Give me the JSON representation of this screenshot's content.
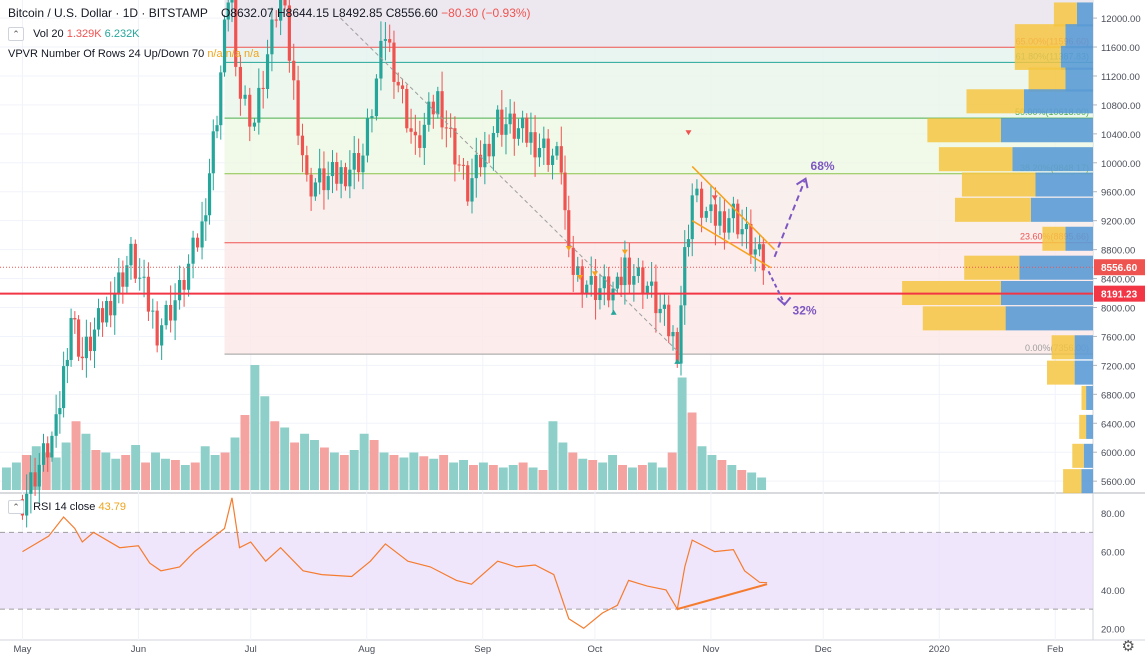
{
  "header": {
    "symbol": "Bitcoin / U.S. Dollar · 1D · BITSTAMP",
    "ohlc": "O8632.07  H8644.15  L8492.85  C8556.60",
    "change": "−80.30 (−0.93%)"
  },
  "indicators": {
    "vol_label": "Vol 20",
    "vol_v1": "1.329K",
    "vol_v2": "6.232K",
    "vpvr_label": "VPVR Number Of Rows 24 Up/Down 70",
    "vpvr_vals": "n/a  n/a  n/a",
    "rsi_label": "RSI 14 close",
    "rsi_value": "43.79"
  },
  "colors": {
    "up": "#26a69a",
    "down": "#ef5350",
    "vol_up": "#8ed0c9",
    "vol_down": "#f5a3a1",
    "fib": "#ef9a9a",
    "support": "#f23645",
    "wedge": "#f7a21b",
    "arrows": "#7e57c2",
    "rsi_line": "#f57c2f",
    "rsi_band": "#e9dcfb"
  },
  "chart_data": [
    {
      "type": "candlestick",
      "title": "Bitcoin / U.S. Dollar · 1D · BITSTAMP",
      "x_ticks": [
        "May",
        "Jun",
        "Jul",
        "Aug",
        "Sep",
        "Oct",
        "Nov",
        "Dec",
        "2020",
        "Feb"
      ],
      "y_ticks": [
        5600,
        6000,
        6400,
        6800,
        7200,
        7600,
        8000,
        8400,
        8800,
        9200,
        9600,
        10000,
        10400,
        10800,
        11200,
        11600,
        12000
      ],
      "y_tick_labels": [
        "5600.00",
        "6000.00",
        "6400.00",
        "6800.00",
        "7200.00",
        "7600.00",
        "8000.00",
        "8400.00",
        "8800.00",
        "9200.00",
        "9600.00",
        "10000.00",
        "10400.00",
        "10800.00",
        "11200.00",
        "11600.00",
        "12000.00"
      ],
      "ylim": [
        5450,
        12250
      ],
      "last_price": 8556.6,
      "last_price_label": "8556.60",
      "support": 8191.23,
      "support_label": "8191.23",
      "fib_levels": [
        {
          "price": 11596.6,
          "label": "65.00%(11596.60)",
          "color": "#ef5350"
        },
        {
          "price": 11387.83,
          "label": "61.80%(11387.83)",
          "color": "#26a69a"
        },
        {
          "price": 10618.0,
          "label": "50.00%(10618.00)",
          "color": "#4caf50"
        },
        {
          "price": 9848.17,
          "label": "38.20%(9848.17)",
          "color": "#8bc34a"
        },
        {
          "price": 8895.66,
          "label": "23.60%(8895.66)",
          "color": "#ef5350"
        },
        {
          "price": 7356.0,
          "label": "0.00%(7356.00)",
          "color": "#9e9e9e"
        }
      ],
      "annotations": [
        {
          "text": "68%",
          "color": "#7e57c2"
        },
        {
          "text": "32%",
          "color": "#7e57c2"
        }
      ],
      "price_path": [
        [
          "2019-05-01",
          5350
        ],
        [
          "2019-05-10",
          6300
        ],
        [
          "2019-05-14",
          7900
        ],
        [
          "2019-05-17",
          7300
        ],
        [
          "2019-05-30",
          8700
        ],
        [
          "2019-06-06",
          7700
        ],
        [
          "2019-06-12",
          8200
        ],
        [
          "2019-06-18",
          9100
        ],
        [
          "2019-06-22",
          10700
        ],
        [
          "2019-06-26",
          12900
        ],
        [
          "2019-06-27",
          11100
        ],
        [
          "2019-07-02",
          10600
        ],
        [
          "2019-07-09",
          12400
        ],
        [
          "2019-07-16",
          9700
        ],
        [
          "2019-07-24",
          9800
        ],
        [
          "2019-07-31",
          10100
        ],
        [
          "2019-08-06",
          11800
        ],
        [
          "2019-08-14",
          10200
        ],
        [
          "2019-08-20",
          10900
        ],
        [
          "2019-08-28",
          9600
        ],
        [
          "2019-09-05",
          10600
        ],
        [
          "2019-09-15",
          10300
        ],
        [
          "2019-09-22",
          10000
        ],
        [
          "2019-09-24",
          8600
        ],
        [
          "2019-09-30",
          8300
        ],
        [
          "2019-10-07",
          8200
        ],
        [
          "2019-10-09",
          8600
        ],
        [
          "2019-10-15",
          8300
        ],
        [
          "2019-10-23",
          7450
        ],
        [
          "2019-10-25",
          8700
        ],
        [
          "2019-10-27",
          9550
        ],
        [
          "2019-11-01",
          9200
        ],
        [
          "2019-11-07",
          9300
        ],
        [
          "2019-11-14",
          8650
        ],
        [
          "2019-11-16",
          8556
        ]
      ]
    },
    {
      "type": "bar",
      "title": "Vol 20",
      "note": "daily volume histogram beneath price",
      "values_relative": [
        0.18,
        0.22,
        0.28,
        0.35,
        0.3,
        0.26,
        0.38,
        0.55,
        0.45,
        0.32,
        0.3,
        0.25,
        0.28,
        0.36,
        0.22,
        0.3,
        0.25,
        0.24,
        0.2,
        0.22,
        0.35,
        0.28,
        0.3,
        0.42,
        0.6,
        1.0,
        0.75,
        0.55,
        0.5,
        0.38,
        0.45,
        0.4,
        0.34,
        0.3,
        0.28,
        0.32,
        0.45,
        0.4,
        0.3,
        0.28,
        0.26,
        0.3,
        0.27,
        0.25,
        0.28,
        0.22,
        0.24,
        0.2,
        0.22,
        0.2,
        0.18,
        0.2,
        0.22,
        0.18,
        0.16,
        0.55,
        0.38,
        0.3,
        0.25,
        0.24,
        0.22,
        0.28,
        0.2,
        0.18,
        0.2,
        0.22,
        0.18,
        0.3,
        0.9,
        0.62,
        0.35,
        0.28,
        0.24,
        0.2,
        0.16,
        0.14,
        0.1
      ]
    },
    {
      "type": "bar",
      "title": "VPVR Number Of Rows 24 Up/Down 70",
      "orientation": "horizontal",
      "rows": [
        {
          "price": 12050,
          "up": 0.1,
          "down": 0.07
        },
        {
          "price": 11750,
          "up": 0.22,
          "down": 0.12
        },
        {
          "price": 11450,
          "up": 0.2,
          "down": 0.14
        },
        {
          "price": 11150,
          "up": 0.16,
          "down": 0.12
        },
        {
          "price": 10850,
          "up": 0.25,
          "down": 0.3
        },
        {
          "price": 10450,
          "up": 0.32,
          "down": 0.4
        },
        {
          "price": 10050,
          "up": 0.32,
          "down": 0.35
        },
        {
          "price": 9700,
          "up": 0.32,
          "down": 0.25
        },
        {
          "price": 9350,
          "up": 0.33,
          "down": 0.27
        },
        {
          "price": 8950,
          "up": 0.1,
          "down": 0.12
        },
        {
          "price": 8550,
          "up": 0.24,
          "down": 0.32
        },
        {
          "price": 8200,
          "up": 0.43,
          "down": 0.4
        },
        {
          "price": 7850,
          "up": 0.36,
          "down": 0.38
        },
        {
          "price": 7450,
          "up": 0.1,
          "down": 0.08
        },
        {
          "price": 7100,
          "up": 0.12,
          "down": 0.08
        },
        {
          "price": 6750,
          "up": 0.02,
          "down": 0.03
        },
        {
          "price": 6350,
          "up": 0.03,
          "down": 0.03
        },
        {
          "price": 5950,
          "up": 0.05,
          "down": 0.04
        },
        {
          "price": 5600,
          "up": 0.08,
          "down": 0.05
        }
      ]
    },
    {
      "type": "line",
      "title": "RSI 14 close",
      "y_ticks": [
        20,
        40,
        60,
        80
      ],
      "y_tick_labels": [
        "20.00",
        "40.00",
        "60.00",
        "80.00"
      ],
      "ylim": [
        16,
        90
      ],
      "band": [
        30,
        70
      ],
      "last": 43.79,
      "points": [
        [
          "2019-05-01",
          60
        ],
        [
          "2019-05-08",
          68
        ],
        [
          "2019-05-12",
          78
        ],
        [
          "2019-05-15",
          72
        ],
        [
          "2019-05-17",
          65
        ],
        [
          "2019-05-20",
          70
        ],
        [
          "2019-05-27",
          62
        ],
        [
          "2019-06-01",
          63
        ],
        [
          "2019-06-04",
          54
        ],
        [
          "2019-06-07",
          50
        ],
        [
          "2019-06-12",
          52
        ],
        [
          "2019-06-16",
          60
        ],
        [
          "2019-06-20",
          66
        ],
        [
          "2019-06-24",
          72
        ],
        [
          "2019-06-26",
          88
        ],
        [
          "2019-06-28",
          62
        ],
        [
          "2019-07-01",
          65
        ],
        [
          "2019-07-05",
          55
        ],
        [
          "2019-07-09",
          62
        ],
        [
          "2019-07-15",
          50
        ],
        [
          "2019-07-20",
          48
        ],
        [
          "2019-07-28",
          47
        ],
        [
          "2019-08-02",
          55
        ],
        [
          "2019-08-06",
          64
        ],
        [
          "2019-08-12",
          55
        ],
        [
          "2019-08-18",
          52
        ],
        [
          "2019-08-25",
          45
        ],
        [
          "2019-08-29",
          43
        ],
        [
          "2019-09-05",
          55
        ],
        [
          "2019-09-10",
          52
        ],
        [
          "2019-09-15",
          53
        ],
        [
          "2019-09-20",
          48
        ],
        [
          "2019-09-24",
          25
        ],
        [
          "2019-09-28",
          20
        ],
        [
          "2019-10-03",
          28
        ],
        [
          "2019-10-07",
          32
        ],
        [
          "2019-10-10",
          45
        ],
        [
          "2019-10-15",
          42
        ],
        [
          "2019-10-20",
          40
        ],
        [
          "2019-10-23",
          30
        ],
        [
          "2019-10-25",
          52
        ],
        [
          "2019-10-27",
          66
        ],
        [
          "2019-11-02",
          60
        ],
        [
          "2019-11-07",
          61
        ],
        [
          "2019-11-10",
          50
        ],
        [
          "2019-11-14",
          44
        ],
        [
          "2019-11-16",
          43.79
        ]
      ],
      "divergence_line": [
        [
          "2019-10-23",
          30
        ],
        [
          "2019-11-16",
          43
        ]
      ]
    }
  ]
}
